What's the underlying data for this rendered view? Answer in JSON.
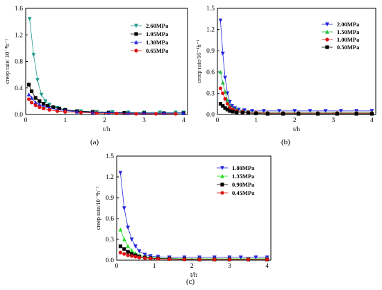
{
  "panels": [
    {
      "sublabel": "(a)",
      "chart_data": {
        "type": "line",
        "xlabel": "t/h",
        "ylabel": "creep rate/ 10⁻⁴h⁻¹",
        "xlim": [
          0,
          4.1
        ],
        "ylim": [
          0,
          1.6
        ],
        "xticks": [
          0,
          1,
          2,
          3,
          4
        ],
        "yticks": [
          0.0,
          0.4,
          0.8,
          1.2,
          1.6
        ],
        "ytick_labels": [
          "0.0",
          "0.4",
          "0.8",
          "1.2",
          "1.6"
        ],
        "legend_position": "top-right",
        "series": [
          {
            "name": "2.60MPa",
            "color": "#1a9a8a",
            "marker": "triangle-down",
            "x": [
              0.1,
              0.2,
              0.3,
              0.4,
              0.5,
              0.6,
              0.8,
              1.0,
              1.4,
              1.8,
              2.2,
              2.6,
              3.0,
              3.4,
              3.8,
              4.0
            ],
            "y": [
              1.44,
              0.9,
              0.52,
              0.3,
              0.2,
              0.15,
              0.1,
              0.07,
              0.05,
              0.04,
              0.035,
              0.03,
              0.03,
              0.03,
              0.03,
              0.03
            ]
          },
          {
            "name": "1.95MPa",
            "color": "#000000",
            "marker": "square",
            "x": [
              0.08,
              0.15,
              0.25,
              0.35,
              0.45,
              0.55,
              0.7,
              0.85,
              1.0,
              1.3,
              1.7,
              2.1,
              2.5,
              3.0,
              3.5,
              4.0
            ],
            "y": [
              0.45,
              0.35,
              0.25,
              0.2,
              0.16,
              0.13,
              0.11,
              0.09,
              0.07,
              0.05,
              0.04,
              0.03,
              0.025,
              0.02,
              0.02,
              0.02
            ]
          },
          {
            "name": "1.30MPa",
            "color": "#2222dd",
            "marker": "triangle-up",
            "x": [
              0.08,
              0.15,
              0.25,
              0.35,
              0.45,
              0.6,
              0.8,
              1.0,
              1.3,
              1.7,
              2.1,
              2.6,
              3.0,
              3.5,
              4.0
            ],
            "y": [
              0.3,
              0.25,
              0.18,
              0.15,
              0.12,
              0.1,
              0.07,
              0.06,
              0.04,
              0.03,
              0.025,
              0.02,
              0.02,
              0.02,
              0.02
            ]
          },
          {
            "name": "0.65MPa",
            "color": "#dd1111",
            "marker": "circle",
            "x": [
              0.08,
              0.15,
              0.25,
              0.35,
              0.45,
              0.6,
              0.8,
              1.0,
              1.4,
              1.8,
              2.3,
              2.8,
              3.3,
              3.8
            ],
            "y": [
              0.23,
              0.18,
              0.14,
              0.11,
              0.09,
              0.07,
              0.05,
              0.04,
              0.03,
              0.02,
              0.015,
              0.01,
              0.01,
              0.01
            ]
          }
        ]
      }
    },
    {
      "sublabel": "(b)",
      "chart_data": {
        "type": "line",
        "xlabel": "t/h",
        "ylabel": "creep rate/10⁻⁴h⁻¹",
        "xlim": [
          0,
          4.1
        ],
        "ylim": [
          0,
          1.5
        ],
        "xticks": [
          0,
          1,
          2,
          3,
          4
        ],
        "yticks": [
          0.0,
          0.3,
          0.6,
          0.9,
          1.2,
          1.5
        ],
        "ytick_labels": [
          "0.0",
          "0.3",
          "0.6",
          "0.9",
          "1.2",
          "1.5"
        ],
        "legend_position": "top-right",
        "series": [
          {
            "name": "2.00MPa",
            "color": "#2222dd",
            "marker": "triangle-down",
            "x": [
              0.08,
              0.14,
              0.2,
              0.26,
              0.32,
              0.38,
              0.45,
              0.55,
              0.7,
              0.9,
              1.2,
              1.6,
              2.0,
              2.4,
              2.8,
              3.2,
              3.6,
              4.0
            ],
            "y": [
              1.33,
              0.86,
              0.52,
              0.3,
              0.18,
              0.12,
              0.09,
              0.07,
              0.06,
              0.05,
              0.05,
              0.05,
              0.05,
              0.05,
              0.05,
              0.05,
              0.05,
              0.05
            ]
          },
          {
            "name": "1.50MPa",
            "color": "#22bb44",
            "marker": "triangle-up",
            "x": [
              0.08,
              0.14,
              0.2,
              0.26,
              0.32,
              0.4,
              0.5,
              0.65,
              0.8,
              1.0,
              1.3,
              1.7,
              2.1,
              2.6,
              3.1,
              3.6,
              4.0
            ],
            "y": [
              0.6,
              0.45,
              0.32,
              0.2,
              0.13,
              0.09,
              0.07,
              0.05,
              0.04,
              0.035,
              0.03,
              0.03,
              0.03,
              0.03,
              0.03,
              0.03,
              0.03
            ]
          },
          {
            "name": "1.00MPa",
            "color": "#dd1111",
            "marker": "circle",
            "x": [
              0.08,
              0.14,
              0.2,
              0.26,
              0.32,
              0.4,
              0.5,
              0.65,
              0.8,
              1.0,
              1.3,
              1.7,
              2.1,
              2.6,
              3.1,
              3.6,
              4.0
            ],
            "y": [
              0.37,
              0.3,
              0.22,
              0.15,
              0.1,
              0.07,
              0.05,
              0.04,
              0.03,
              0.025,
              0.02,
              0.02,
              0.02,
              0.02,
              0.02,
              0.02,
              0.02
            ]
          },
          {
            "name": "0.50MPa",
            "color": "#000000",
            "marker": "square",
            "x": [
              0.08,
              0.14,
              0.2,
              0.26,
              0.32,
              0.4,
              0.5,
              0.65,
              0.8,
              1.0,
              1.3,
              1.7,
              2.1,
              2.6,
              3.1,
              3.6,
              4.0
            ],
            "y": [
              0.15,
              0.12,
              0.09,
              0.07,
              0.05,
              0.04,
              0.03,
              0.025,
              0.02,
              0.015,
              0.01,
              0.01,
              0.01,
              0.01,
              0.01,
              0.01,
              0.01
            ]
          }
        ]
      }
    },
    {
      "sublabel": "(c)",
      "chart_data": {
        "type": "line",
        "xlabel": "t/h",
        "ylabel": "creep rate/10⁻⁴h⁻¹",
        "xlim": [
          0,
          4.1
        ],
        "ylim": [
          0,
          1.5
        ],
        "xticks": [
          0,
          1,
          2,
          3,
          4
        ],
        "yticks": [
          0.0,
          0.3,
          0.6,
          0.9,
          1.2,
          1.5
        ],
        "ytick_labels": [
          "0.0",
          "0.3",
          "0.6",
          "0.9",
          "1.2",
          "1.5"
        ],
        "legend_position": "top-right",
        "series": [
          {
            "name": "1.80MPa",
            "color": "#2222dd",
            "marker": "triangle-down",
            "x": [
              0.1,
              0.2,
              0.3,
              0.4,
              0.5,
              0.6,
              0.75,
              0.9,
              1.1,
              1.4,
              1.8,
              2.2,
              2.6,
              3.0,
              3.3,
              3.7,
              4.0
            ],
            "y": [
              1.26,
              0.75,
              0.47,
              0.3,
              0.2,
              0.13,
              0.08,
              0.06,
              0.05,
              0.04,
              0.04,
              0.04,
              0.04,
              0.04,
              0.04,
              0.04,
              0.04
            ]
          },
          {
            "name": "1.35MPa",
            "color": "#22dd22",
            "marker": "triangle-up",
            "x": [
              0.1,
              0.2,
              0.3,
              0.4,
              0.5,
              0.6,
              0.75,
              0.9,
              1.1,
              1.4,
              1.8,
              2.2,
              2.6,
              3.0,
              3.5,
              4.0
            ],
            "y": [
              0.44,
              0.3,
              0.2,
              0.14,
              0.1,
              0.07,
              0.05,
              0.04,
              0.03,
              0.025,
              0.02,
              0.02,
              0.02,
              0.02,
              0.02,
              0.02
            ]
          },
          {
            "name": "0.90MPa",
            "color": "#000000",
            "marker": "square",
            "x": [
              0.1,
              0.2,
              0.3,
              0.4,
              0.5,
              0.6,
              0.75,
              0.9,
              1.1,
              1.4,
              1.8,
              2.2,
              2.6,
              3.0,
              3.5,
              4.0
            ],
            "y": [
              0.2,
              0.16,
              0.12,
              0.09,
              0.07,
              0.05,
              0.04,
              0.03,
              0.025,
              0.02,
              0.015,
              0.01,
              0.01,
              0.01,
              0.01,
              0.01
            ]
          },
          {
            "name": "0.45MPa",
            "color": "#dd1111",
            "marker": "circle",
            "x": [
              0.1,
              0.2,
              0.3,
              0.4,
              0.5,
              0.6,
              0.75,
              0.9,
              1.1,
              1.4,
              1.8,
              2.2,
              2.6,
              3.0,
              3.5,
              4.0
            ],
            "y": [
              0.11,
              0.09,
              0.07,
              0.06,
              0.05,
              0.04,
              0.03,
              0.025,
              0.02,
              0.015,
              0.01,
              0.01,
              0.01,
              0.01,
              0.01,
              0.01
            ]
          }
        ]
      }
    }
  ]
}
